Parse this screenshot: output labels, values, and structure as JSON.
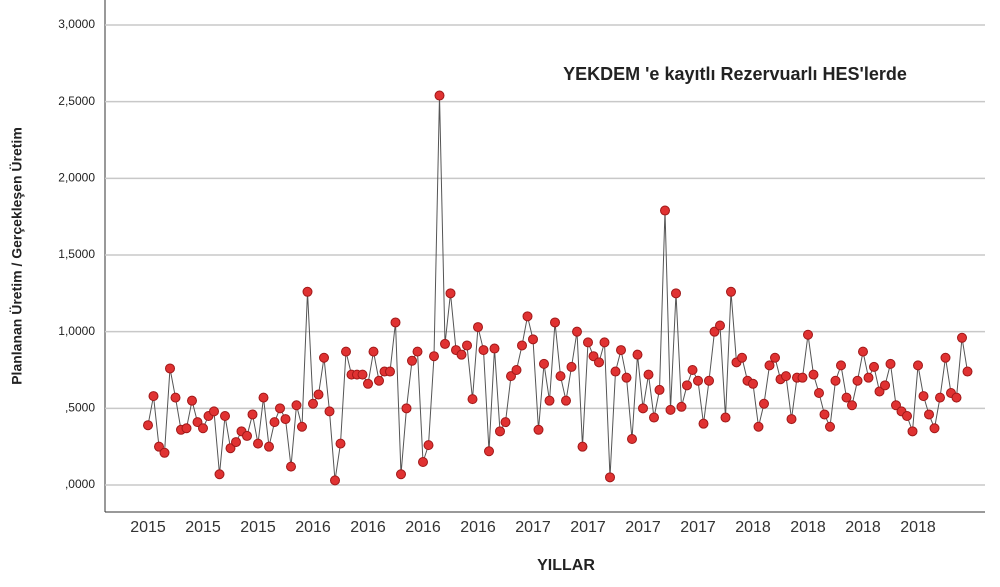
{
  "chart_data": {
    "type": "line",
    "title": "YEKDEM 'e kayıtlı Rezervuarlı HES'lerde",
    "x_label": "YILLAR",
    "y_label": "Planlanan Üretim / Gerçekleşen Üretim",
    "categories": [
      "2015",
      null,
      null,
      null,
      null,
      null,
      null,
      null,
      null,
      null,
      "2015",
      null,
      null,
      null,
      null,
      null,
      null,
      null,
      null,
      null,
      "2015",
      null,
      null,
      null,
      null,
      null,
      null,
      null,
      null,
      null,
      "2016",
      null,
      null,
      null,
      null,
      null,
      null,
      null,
      null,
      null,
      "2016",
      null,
      null,
      null,
      null,
      null,
      null,
      null,
      null,
      null,
      "2016",
      null,
      null,
      null,
      null,
      null,
      null,
      null,
      null,
      null,
      "2016",
      null,
      null,
      null,
      null,
      null,
      null,
      null,
      null,
      null,
      "2017",
      null,
      null,
      null,
      null,
      null,
      null,
      null,
      null,
      null,
      "2017",
      null,
      null,
      null,
      null,
      null,
      null,
      null,
      null,
      null,
      "2017",
      null,
      null,
      null,
      null,
      null,
      null,
      null,
      null,
      null,
      "2017",
      null,
      null,
      null,
      null,
      null,
      null,
      null,
      null,
      null,
      "2018",
      null,
      null,
      null,
      null,
      null,
      null,
      null,
      null,
      null,
      "2018",
      null,
      null,
      null,
      null,
      null,
      null,
      null,
      null,
      null,
      "2018",
      null,
      null,
      null,
      null,
      null,
      null,
      null,
      null,
      null,
      "2018",
      null,
      null,
      null,
      null,
      null,
      null,
      null,
      null,
      null
    ],
    "values": [
      0.39,
      0.58,
      0.25,
      0.21,
      0.76,
      0.57,
      0.36,
      0.37,
      0.55,
      0.41,
      0.37,
      0.45,
      0.48,
      0.07,
      0.45,
      0.24,
      0.28,
      0.35,
      0.32,
      0.46,
      0.27,
      0.57,
      0.25,
      0.41,
      0.5,
      0.43,
      0.12,
      0.52,
      0.38,
      1.26,
      0.53,
      0.59,
      0.83,
      0.48,
      0.03,
      0.27,
      0.87,
      0.72,
      0.72,
      0.72,
      0.66,
      0.87,
      0.68,
      0.74,
      0.74,
      1.06,
      0.07,
      0.5,
      0.81,
      0.87,
      0.15,
      0.26,
      0.84,
      2.54,
      0.92,
      1.25,
      0.88,
      0.85,
      0.91,
      0.56,
      1.03,
      0.88,
      0.22,
      0.89,
      0.35,
      0.41,
      0.71,
      0.75,
      0.91,
      1.1,
      0.95,
      0.36,
      0.79,
      0.55,
      1.06,
      0.71,
      0.55,
      0.77,
      1.0,
      0.25,
      0.93,
      0.84,
      0.8,
      0.93,
      0.05,
      0.74,
      0.88,
      0.7,
      0.3,
      0.85,
      0.5,
      0.72,
      0.44,
      0.62,
      1.79,
      0.49,
      1.25,
      0.51,
      0.65,
      0.75,
      0.68,
      0.4,
      0.68,
      1.0,
      1.04,
      0.44,
      1.26,
      0.8,
      0.83,
      0.68,
      0.66,
      0.38,
      0.53,
      0.78,
      0.83,
      0.69,
      0.71,
      0.43,
      0.7,
      0.7,
      0.98,
      0.72,
      0.6,
      0.46,
      0.38,
      0.68,
      0.78,
      0.57,
      0.52,
      0.68,
      0.87,
      0.7,
      0.77,
      0.61,
      0.65,
      0.79,
      0.52,
      0.48,
      0.45,
      0.35,
      0.78,
      0.58,
      0.46,
      0.37,
      0.57,
      0.83,
      0.6,
      0.57,
      0.96,
      0.74
    ],
    "color": "#e03232",
    "line_color": "#555555",
    "ylim": [
      0,
      3
    ],
    "yticks": [
      {
        "value": 0,
        "label": ",0000"
      },
      {
        "value": 0.5,
        "label": ",5000"
      },
      {
        "value": 1,
        "label": "1,0000"
      },
      {
        "value": 1.5,
        "label": "1,5000"
      },
      {
        "value": 2,
        "label": "2,0000"
      },
      {
        "value": 2.5,
        "label": "2,5000"
      },
      {
        "value": 3,
        "label": "3,0000"
      }
    ],
    "grid": true
  }
}
